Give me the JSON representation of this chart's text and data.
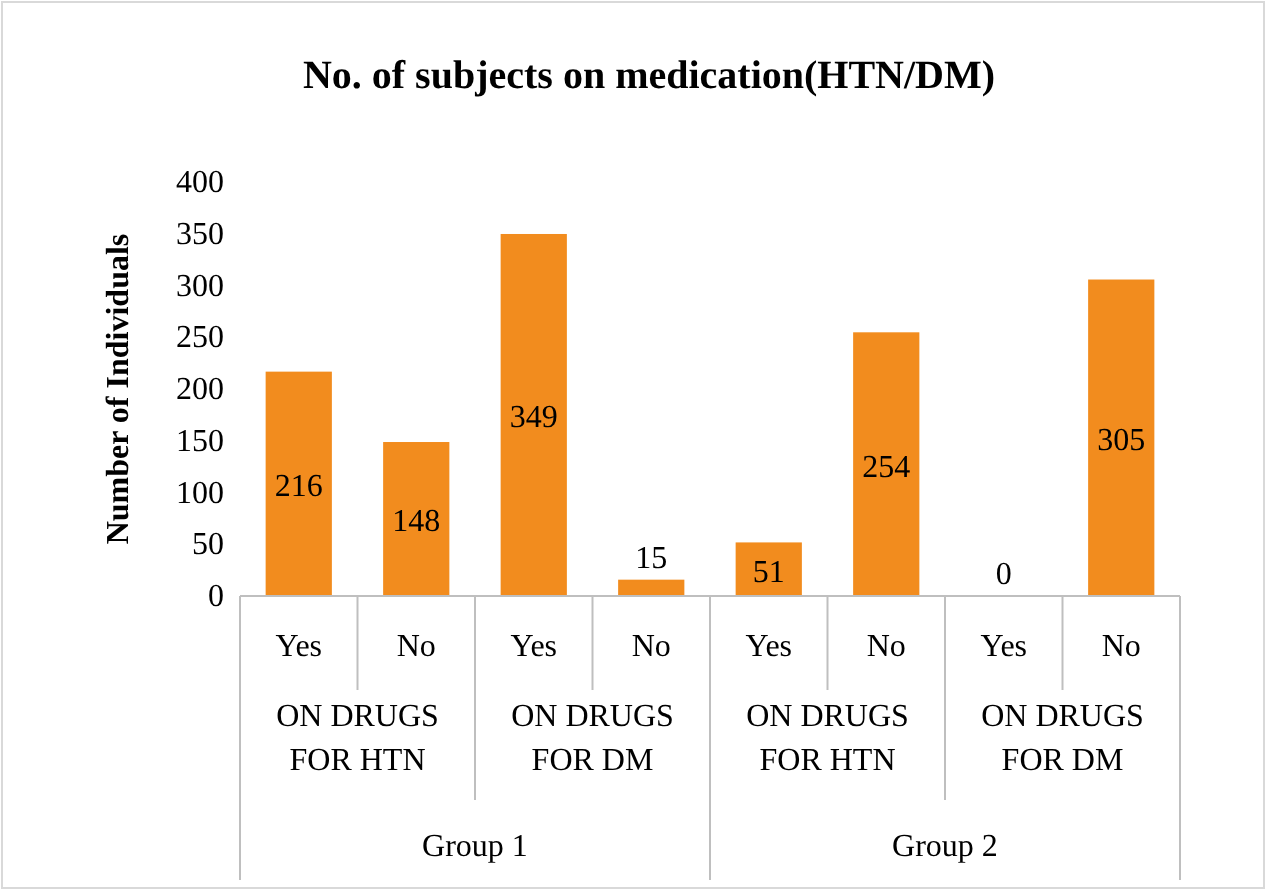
{
  "chart_data": {
    "type": "bar",
    "title": "No. of subjects on medication(HTN/DM)",
    "ylabel": "Number of Individuals",
    "categories": [
      "Yes",
      "No",
      "Yes",
      "No",
      "Yes",
      "No",
      "Yes",
      "No"
    ],
    "values": [
      216,
      148,
      349,
      15,
      51,
      254,
      0,
      305
    ],
    "color": "#f28c1e",
    "ylim": [
      0,
      400
    ],
    "yticks": [
      0,
      50,
      100,
      150,
      200,
      250,
      300,
      350,
      400
    ],
    "data_labels": true,
    "grid": false,
    "annotations": [
      "ON DRUGS FOR HTN",
      "ON DRUGS FOR DM",
      "ON DRUGS FOR HTN",
      "ON DRUGS FOR DM",
      "Group 1",
      "Group 2"
    ]
  }
}
